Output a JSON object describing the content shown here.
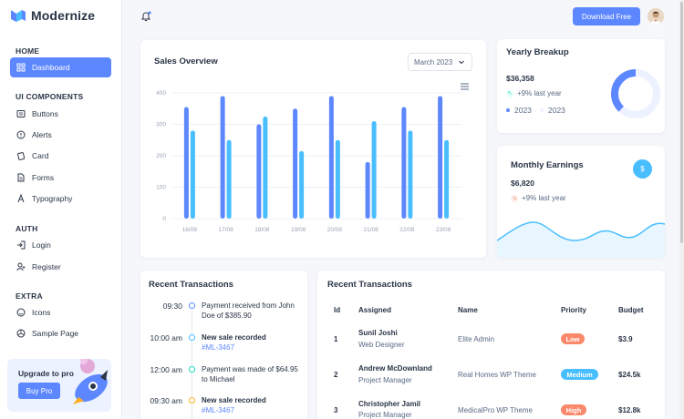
{
  "brand": {
    "name": "Modernize"
  },
  "sidebar": {
    "sections": [
      {
        "heading": "HOME"
      },
      {
        "heading": "UI COMPONENTS"
      },
      {
        "heading": "AUTH"
      },
      {
        "heading": "EXTRA"
      }
    ],
    "items": [
      {
        "label": "Dashboard",
        "icon": "dashboard-icon"
      },
      {
        "label": "Buttons",
        "icon": "article-icon"
      },
      {
        "label": "Alerts",
        "icon": "alert-circle-icon"
      },
      {
        "label": "Card",
        "icon": "cards-icon"
      },
      {
        "label": "Forms",
        "icon": "file-description-icon"
      },
      {
        "label": "Typography",
        "icon": "typography-icon"
      },
      {
        "label": "Login",
        "icon": "login-icon"
      },
      {
        "label": "Register",
        "icon": "user-plus-icon"
      },
      {
        "label": "Icons",
        "icon": "mood-happy-icon"
      },
      {
        "label": "Sample Page",
        "icon": "aperture-icon"
      }
    ],
    "upgrade": {
      "text": "Upgrade to pro",
      "button": "Buy Pro"
    }
  },
  "header": {
    "download_label": "Download Free"
  },
  "colors": {
    "primary": "#5d87ff",
    "secondary": "#49beff",
    "success": "#13deb9",
    "warning": "#ffae1f",
    "danger": "#fa896b"
  },
  "sales": {
    "title": "Sales Overview",
    "period": "March 2023",
    "chart_data": {
      "type": "bar",
      "categories": [
        "16/08",
        "17/08",
        "18/08",
        "19/08",
        "20/08",
        "21/08",
        "22/08",
        "23/08"
      ],
      "series": [
        {
          "values": [
            355,
            390,
            300,
            350,
            390,
            180,
            355,
            390
          ]
        },
        {
          "values": [
            280,
            250,
            325,
            215,
            250,
            310,
            280,
            250
          ]
        }
      ],
      "yticks": [
        "0",
        "100",
        "200",
        "300",
        "400"
      ],
      "ylim": [
        0,
        400
      ]
    }
  },
  "yearly": {
    "title": "Yearly Breakup",
    "amount": "$36,358",
    "change": "+9% last year",
    "legend": [
      "2023",
      "2023"
    ],
    "chart_data": {
      "type": "pie",
      "values": [
        38,
        62
      ]
    }
  },
  "monthly": {
    "title": "Monthly Earnings",
    "amount": "$6,820",
    "change": "+9% last year",
    "currency_symbol": "$"
  },
  "timeline": {
    "title": "Recent Transactions",
    "items": [
      {
        "time": "09:30",
        "text": "Payment received from John Doe of $385.90",
        "color": "#5d87ff",
        "bold": false
      },
      {
        "time": "10:00 am",
        "text": "New sale recorded",
        "link": "#ML-3467",
        "color": "#49beff",
        "bold": true
      },
      {
        "time": "12:00 am",
        "text": "Payment was made of $64.95 to Michael",
        "color": "#13deb9",
        "bold": false
      },
      {
        "time": "09:30 am",
        "text": "New sale recorded",
        "link": "#ML-3467",
        "color": "#ffae1f",
        "bold": true
      }
    ]
  },
  "table": {
    "title": "Recent Transactions",
    "headers": [
      "Id",
      "Assigned",
      "Name",
      "Priority",
      "Budget"
    ],
    "rows": [
      {
        "id": "1",
        "person": "Sunil Joshi",
        "role": "Web Designer",
        "name": "Elite Admin",
        "priority": "Low",
        "color": "#fa896b",
        "budget": "$3.9"
      },
      {
        "id": "2",
        "person": "Andrew McDownland",
        "role": "Project Manager",
        "name": "Real Homes WP Theme",
        "priority": "Medium",
        "color": "#49beff",
        "budget": "$24.5k"
      },
      {
        "id": "3",
        "person": "Christopher Jamil",
        "role": "Project Manager",
        "name": "MedicalPro WP Theme",
        "priority": "High",
        "color": "#fa896b",
        "budget": "$12.8k"
      }
    ]
  }
}
